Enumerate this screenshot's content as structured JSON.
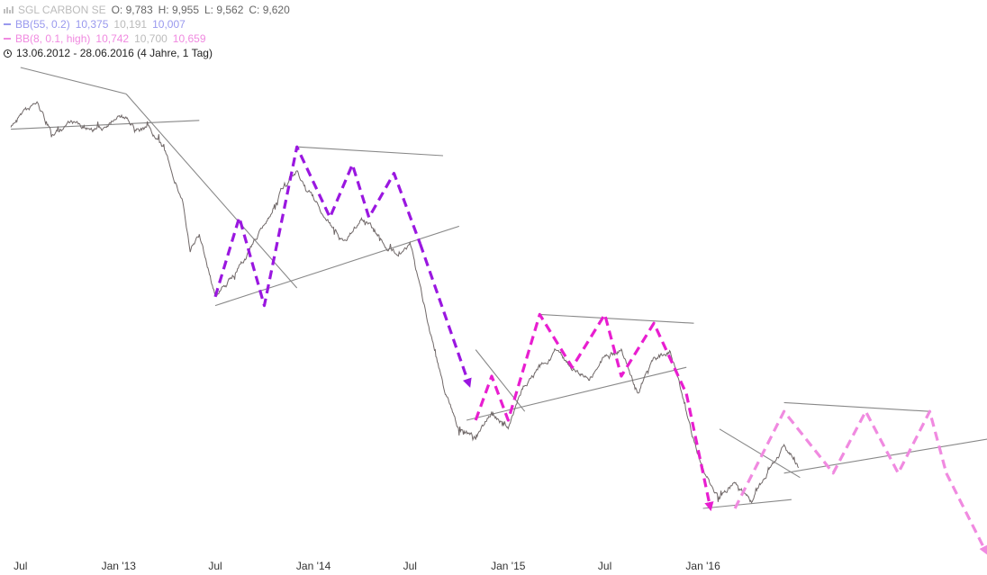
{
  "legend": {
    "symbol": "SGL CARBON SE",
    "ohlc": {
      "O": "O: 9,783",
      "H": "H: 9,955",
      "L": "L: 9,562",
      "C": "C: 9,620"
    },
    "bb1": {
      "label": "BB(55, 0.2)",
      "v1": "10,375",
      "v2": "10,191",
      "v3": "10,007",
      "color": "#9999ee"
    },
    "bb2": {
      "label": "BB(8, 0.1, high)",
      "v1": "10,742",
      "v2": "10,700",
      "v3": "10,659",
      "color": "#f08ae0"
    },
    "range": "13.06.2012 - 28.06.2016 (4 Jahre, 1 Tag)",
    "icons": [
      "chart-icon",
      "clock-icon"
    ]
  },
  "chart_data": {
    "type": "line",
    "x_ticks": [
      "Jul",
      "Jan '13",
      "Jul",
      "Jan '14",
      "Jul",
      "Jan '15",
      "Jul",
      "Jan '16"
    ],
    "series": [
      {
        "color": "#706868",
        "points": [
          [
            "2012-06-13",
            48
          ],
          [
            "2012-07-01",
            50
          ],
          [
            "2012-08-01",
            51
          ],
          [
            "2012-09-01",
            47
          ],
          [
            "2012-10-01",
            49
          ],
          [
            "2012-11-01",
            48
          ],
          [
            "2012-12-01",
            48
          ],
          [
            "2013-01-01",
            50
          ],
          [
            "2013-02-01",
            48
          ],
          [
            "2013-03-01",
            48
          ],
          [
            "2013-04-01",
            45
          ],
          [
            "2013-05-01",
            40
          ],
          [
            "2013-05-15",
            34
          ],
          [
            "2013-06-01",
            36
          ],
          [
            "2013-07-01",
            29
          ],
          [
            "2013-08-01",
            31
          ],
          [
            "2013-09-01",
            34
          ],
          [
            "2013-10-01",
            37
          ],
          [
            "2013-11-01",
            41
          ],
          [
            "2013-12-01",
            43
          ],
          [
            "2014-01-01",
            40
          ],
          [
            "2014-02-01",
            37
          ],
          [
            "2014-03-01",
            35
          ],
          [
            "2014-04-01",
            38
          ],
          [
            "2014-05-01",
            36
          ],
          [
            "2014-06-01",
            34
          ],
          [
            "2014-07-01",
            35
          ],
          [
            "2014-07-20",
            30
          ],
          [
            "2014-08-01",
            27
          ],
          [
            "2014-09-01",
            19
          ],
          [
            "2014-10-01",
            14
          ],
          [
            "2014-11-01",
            13
          ],
          [
            "2014-12-01",
            16
          ],
          [
            "2015-01-01",
            14
          ],
          [
            "2015-02-01",
            19
          ],
          [
            "2015-03-01",
            21
          ],
          [
            "2015-04-01",
            23
          ],
          [
            "2015-05-01",
            21
          ],
          [
            "2015-06-01",
            20
          ],
          [
            "2015-07-01",
            22
          ],
          [
            "2015-08-01",
            23
          ],
          [
            "2015-09-01",
            18
          ],
          [
            "2015-10-01",
            22
          ],
          [
            "2015-11-01",
            23
          ],
          [
            "2015-12-01",
            16
          ],
          [
            "2016-01-01",
            9
          ],
          [
            "2016-02-01",
            6
          ],
          [
            "2016-03-01",
            8
          ],
          [
            "2016-04-01",
            6
          ],
          [
            "2016-05-01",
            9
          ],
          [
            "2016-06-01",
            12
          ],
          [
            "2016-06-28",
            9.6
          ]
        ]
      }
    ],
    "trendlines": [
      [
        [
          "2012-06-13",
          48
        ],
        [
          "2013-06-01",
          49
        ]
      ],
      [
        [
          "2012-07-01",
          55
        ],
        [
          "2013-01-15",
          52
        ]
      ],
      [
        [
          "2013-01-15",
          52
        ],
        [
          "2013-12-01",
          30
        ]
      ],
      [
        [
          "2013-07-01",
          28
        ],
        [
          "2014-10-01",
          37
        ]
      ],
      [
        [
          "2013-12-01",
          46
        ],
        [
          "2014-09-01",
          45
        ]
      ],
      [
        [
          "2014-10-15",
          15
        ],
        [
          "2015-12-01",
          21
        ]
      ],
      [
        [
          "2014-11-01",
          23
        ],
        [
          "2015-02-01",
          16
        ]
      ],
      [
        [
          "2015-03-01",
          27
        ],
        [
          "2015-12-15",
          26
        ]
      ],
      [
        [
          "2016-01-01",
          5
        ],
        [
          "2016-06-15",
          6
        ]
      ],
      [
        [
          "2016-02-01",
          14
        ],
        [
          "2016-07-01",
          8.5
        ]
      ],
      [
        [
          "2016-06-01",
          17
        ],
        [
          "2017-03-01",
          16
        ]
      ],
      [
        [
          "2016-06-01",
          9
        ],
        [
          "2017-07-01",
          13
        ]
      ]
    ],
    "projections": [
      {
        "color": "#9a17e0",
        "arrow": false,
        "points": [
          [
            "2013-07-01",
            29
          ],
          [
            "2013-08-15",
            38
          ],
          [
            "2013-10-01",
            28
          ],
          [
            "2013-12-01",
            46
          ],
          [
            "2014-02-01",
            38
          ],
          [
            "2014-03-15",
            44
          ],
          [
            "2014-04-15",
            38
          ],
          [
            "2014-06-01",
            43
          ],
          [
            "2014-07-20",
            35
          ]
        ]
      },
      {
        "color": "#9a17e0",
        "arrow": true,
        "points": [
          [
            "2014-07-20",
            35
          ],
          [
            "2014-10-20",
            19
          ]
        ]
      },
      {
        "color": "#e81ed0",
        "arrow": false,
        "points": [
          [
            "2014-11-01",
            15
          ],
          [
            "2014-12-01",
            20
          ],
          [
            "2015-01-01",
            15
          ],
          [
            "2015-03-01",
            27
          ],
          [
            "2015-05-01",
            21
          ],
          [
            "2015-07-01",
            27
          ],
          [
            "2015-08-01",
            20
          ],
          [
            "2015-10-01",
            26
          ],
          [
            "2015-12-01",
            18
          ]
        ]
      },
      {
        "color": "#e81ed0",
        "arrow": true,
        "points": [
          [
            "2015-12-01",
            18
          ],
          [
            "2016-01-15",
            5
          ]
        ]
      },
      {
        "color": "#f08ae0",
        "arrow": false,
        "points": [
          [
            "2016-03-01",
            5
          ],
          [
            "2016-06-01",
            16
          ],
          [
            "2016-09-01",
            9
          ],
          [
            "2016-11-01",
            16
          ],
          [
            "2017-01-01",
            9
          ],
          [
            "2017-03-01",
            16
          ],
          [
            "2017-04-01",
            9
          ]
        ]
      },
      {
        "color": "#f08ae0",
        "arrow": true,
        "points": [
          [
            "2017-04-01",
            9
          ],
          [
            "2017-06-15",
            0
          ]
        ]
      }
    ],
    "grid": false,
    "legend_position": "top-left"
  }
}
